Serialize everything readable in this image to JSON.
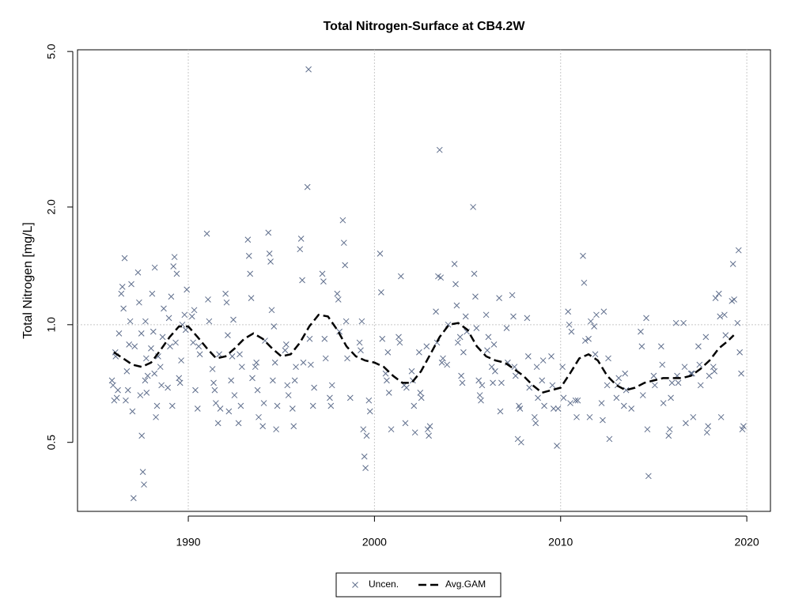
{
  "chart_data": {
    "type": "scatter",
    "title": "Total Nitrogen-Surface at CB4.2W",
    "y_label": "Total Nitrogen [mg/L]",
    "xlim": [
      1984.05,
      2021.27
    ],
    "xticks": [
      1990,
      2000,
      2010,
      2020
    ],
    "ylim": [
      0.333,
      5.05
    ],
    "ylog": true,
    "yticks": [
      0.5,
      {
        "value": 1,
        "label": "1.0"
      },
      {
        "value": 2,
        "label": "2.0"
      },
      {
        "value": 5,
        "label": "5.0"
      }
    ],
    "grid": true,
    "hline": 1,
    "legend": "bottom",
    "series": [
      {
        "name": "Uncen.",
        "type": "scatter",
        "marker": "x",
        "color": "#5f6e8c",
        "x": [
          1985.9,
          1985.96,
          1986.02,
          1986.08,
          1986.1,
          1986.16,
          1986.22,
          1986.28,
          1986.4,
          1986.46,
          1986.52,
          1986.58,
          1986.64,
          1986.7,
          1986.76,
          1986.82,
          1986.88,
          1986.94,
          1987.0,
          1987.06,
          1987.12,
          1987.3,
          1987.36,
          1987.42,
          1987.48,
          1987.5,
          1987.56,
          1987.62,
          1987.68,
          1987.74,
          1987.7,
          1987.76,
          1987.82,
          1988.0,
          1988.06,
          1988.12,
          1988.18,
          1988.2,
          1988.26,
          1988.32,
          1988.38,
          1988.5,
          1988.56,
          1988.62,
          1988.68,
          1988.9,
          1988.96,
          1989.02,
          1989.08,
          1989.14,
          1989.2,
          1989.26,
          1989.32,
          1989.38,
          1989.5,
          1989.56,
          1989.62,
          1989.68,
          1989.8,
          1989.86,
          1989.92,
          1990.2,
          1990.26,
          1990.32,
          1990.38,
          1990.5,
          1990.56,
          1990.62,
          1991.0,
          1991.06,
          1991.12,
          1991.3,
          1991.36,
          1991.42,
          1991.48,
          1991.6,
          1991.66,
          1991.72,
          1992.0,
          1992.06,
          1992.12,
          1992.18,
          1992.3,
          1992.36,
          1992.42,
          1992.48,
          1992.7,
          1992.76,
          1992.82,
          1992.88,
          1993.2,
          1993.26,
          1993.32,
          1993.38,
          1993.44,
          1993.6,
          1993.66,
          1993.72,
          1993.78,
          1994.0,
          1994.06,
          1994.12,
          1994.3,
          1994.36,
          1994.42,
          1994.48,
          1994.54,
          1994.6,
          1994.66,
          1994.72,
          1994.78,
          1995.2,
          1995.26,
          1995.32,
          1995.38,
          1995.6,
          1995.66,
          1995.72,
          1995.78,
          1996.0,
          1996.06,
          1996.12,
          1996.18,
          1996.4,
          1996.46,
          1996.52,
          1996.58,
          1996.7,
          1996.76,
          1997.2,
          1997.26,
          1997.32,
          1997.38,
          1997.6,
          1997.66,
          1997.72,
          1998.0,
          1998.06,
          1998.12,
          1998.3,
          1998.36,
          1998.42,
          1998.48,
          1998.54,
          1998.7,
          1999.2,
          1999.26,
          1999.32,
          1999.4,
          1999.46,
          1999.52,
          1999.58,
          1999.7,
          1999.76,
          2000.3,
          2000.36,
          2000.42,
          2000.6,
          2000.66,
          2000.72,
          2000.78,
          2000.9,
          2001.3,
          2001.36,
          2001.42,
          2001.6,
          2001.66,
          2001.72,
          2002.0,
          2002.06,
          2002.12,
          2002.18,
          2002.4,
          2002.46,
          2002.52,
          2002.8,
          2002.86,
          2002.92,
          2002.98,
          2003.3,
          2003.36,
          2003.42,
          2003.5,
          2003.56,
          2003.62,
          2003.68,
          2003.9,
          2003.96,
          2004.3,
          2004.36,
          2004.42,
          2004.48,
          2004.6,
          2004.66,
          2004.72,
          2004.78,
          2004.9,
          2004.96,
          2005.3,
          2005.36,
          2005.42,
          2005.48,
          2005.6,
          2005.66,
          2005.72,
          2005.78,
          2006.0,
          2006.06,
          2006.12,
          2006.3,
          2006.36,
          2006.42,
          2006.48,
          2006.7,
          2006.76,
          2006.82,
          2007.1,
          2007.16,
          2007.4,
          2007.46,
          2007.52,
          2007.58,
          2007.7,
          2007.76,
          2007.82,
          2007.88,
          2008.2,
          2008.26,
          2008.32,
          2008.6,
          2008.66,
          2008.72,
          2008.78,
          2009.0,
          2009.06,
          2009.12,
          2009.5,
          2009.56,
          2009.62,
          2009.8,
          2009.86,
          2010.1,
          2010.16,
          2010.4,
          2010.46,
          2010.52,
          2010.58,
          2010.8,
          2010.86,
          2010.92,
          2011.2,
          2011.26,
          2011.32,
          2011.5,
          2011.56,
          2011.62,
          2011.8,
          2011.86,
          2011.92,
          2012.2,
          2012.26,
          2012.32,
          2012.5,
          2012.56,
          2012.62,
          2013.0,
          2013.06,
          2013.12,
          2013.4,
          2013.46,
          2013.52,
          2013.8,
          2014.3,
          2014.36,
          2014.42,
          2014.6,
          2014.66,
          2014.72,
          2015.0,
          2015.06,
          2015.4,
          2015.46,
          2015.52,
          2015.8,
          2015.86,
          2015.92,
          2015.98,
          2016.2,
          2016.26,
          2016.32,
          2016.6,
          2016.66,
          2016.72,
          2017.0,
          2017.06,
          2017.12,
          2017.4,
          2017.46,
          2017.52,
          2017.8,
          2017.86,
          2017.92,
          2017.98,
          2018.2,
          2018.26,
          2018.32,
          2018.5,
          2018.56,
          2018.62,
          2018.8,
          2018.86,
          2019.2,
          2019.26,
          2019.32,
          2019.5,
          2019.56,
          2019.62,
          2019.7,
          2019.76,
          2019.82
        ],
        "values": [
          0.72,
          0.7,
          0.64,
          0.85,
          0.83,
          0.65,
          0.68,
          0.95,
          1.2,
          1.25,
          1.1,
          1.48,
          0.64,
          0.76,
          0.68,
          0.89,
          1.02,
          1.27,
          0.6,
          0.36,
          0.88,
          1.36,
          1.14,
          0.66,
          0.95,
          0.52,
          0.42,
          0.39,
          0.72,
          0.82,
          1.02,
          0.67,
          0.74,
          0.87,
          1.2,
          0.96,
          0.75,
          1.4,
          0.58,
          0.62,
          0.83,
          0.78,
          0.7,
          0.93,
          1.1,
          0.69,
          1.04,
          0.88,
          1.18,
          0.62,
          1.41,
          1.49,
          0.9,
          1.35,
          0.73,
          0.71,
          0.81,
          1.0,
          1.06,
          0.97,
          1.23,
          1.05,
          0.9,
          1.09,
          0.68,
          0.61,
          0.88,
          0.84,
          1.71,
          1.16,
          1.02,
          0.77,
          0.71,
          0.68,
          0.63,
          0.56,
          0.84,
          0.61,
          1.2,
          1.14,
          0.94,
          0.6,
          0.72,
          0.83,
          1.03,
          0.66,
          0.56,
          0.84,
          0.62,
          0.78,
          1.65,
          1.5,
          1.35,
          1.17,
          0.73,
          0.78,
          0.8,
          0.68,
          0.58,
          0.55,
          0.63,
          0.91,
          1.72,
          1.52,
          1.45,
          1.09,
          0.72,
          0.99,
          0.8,
          0.54,
          0.62,
          0.86,
          0.89,
          0.7,
          0.66,
          0.61,
          0.55,
          0.72,
          0.78,
          1.56,
          1.66,
          1.3,
          0.8,
          2.25,
          4.5,
          0.92,
          0.79,
          0.62,
          0.69,
          1.35,
          1.29,
          0.92,
          0.82,
          0.65,
          0.62,
          0.7,
          1.2,
          1.16,
          0.96,
          1.85,
          1.62,
          1.42,
          1.02,
          0.82,
          0.65,
          0.9,
          0.86,
          1.02,
          0.54,
          0.46,
          0.43,
          0.52,
          0.64,
          0.6,
          1.52,
          1.21,
          0.92,
          0.75,
          0.72,
          0.85,
          0.67,
          0.54,
          0.93,
          0.9,
          1.33,
          0.7,
          0.56,
          0.69,
          0.76,
          0.72,
          0.62,
          0.53,
          0.85,
          0.67,
          0.65,
          0.88,
          0.54,
          0.52,
          0.55,
          1.08,
          0.9,
          1.33,
          2.8,
          1.32,
          0.8,
          0.82,
          0.79,
          1.0,
          1.43,
          1.27,
          1.12,
          0.9,
          0.93,
          0.74,
          0.71,
          0.85,
          1.05,
          0.96,
          2.0,
          1.35,
          1.18,
          0.98,
          0.72,
          0.66,
          0.64,
          0.7,
          1.06,
          0.86,
          0.93,
          0.78,
          0.71,
          0.89,
          0.76,
          1.17,
          0.6,
          0.71,
          0.98,
          0.8,
          1.19,
          1.05,
          0.78,
          0.74,
          0.51,
          0.62,
          0.61,
          0.5,
          1.04,
          0.83,
          0.69,
          0.58,
          0.56,
          0.78,
          0.65,
          0.72,
          0.81,
          0.62,
          0.83,
          0.7,
          0.61,
          0.49,
          0.61,
          0.78,
          0.65,
          1.08,
          1.0,
          0.63,
          0.96,
          0.64,
          0.58,
          0.64,
          1.5,
          1.28,
          0.91,
          0.92,
          0.58,
          1.02,
          0.99,
          0.84,
          1.06,
          0.63,
          0.57,
          1.08,
          0.7,
          0.82,
          0.51,
          0.65,
          0.7,
          0.73,
          0.62,
          0.75,
          0.68,
          0.61,
          0.96,
          0.88,
          0.66,
          1.04,
          0.54,
          0.41,
          0.74,
          0.7,
          0.88,
          0.79,
          0.63,
          0.52,
          0.54,
          0.65,
          0.71,
          1.01,
          0.74,
          0.71,
          1.01,
          0.78,
          0.56,
          0.75,
          0.75,
          0.58,
          0.88,
          0.79,
          0.7,
          0.93,
          0.53,
          0.55,
          0.74,
          0.78,
          0.76,
          1.17,
          1.2,
          1.05,
          0.58,
          1.06,
          0.94,
          1.15,
          1.43,
          1.16,
          1.01,
          1.55,
          0.85,
          0.75,
          0.54,
          0.55
        ]
      },
      {
        "name": "Avg.GAM",
        "type": "line",
        "linestyle": "dashed",
        "color": "#000000",
        "x": [
          1986.0,
          1986.5,
          1987.0,
          1987.5,
          1988.0,
          1988.5,
          1989.0,
          1989.5,
          1990.0,
          1990.5,
          1991.0,
          1991.5,
          1992.0,
          1992.5,
          1993.0,
          1993.5,
          1994.0,
          1994.5,
          1995.0,
          1995.5,
          1996.0,
          1996.5,
          1997.0,
          1997.5,
          1998.0,
          1998.5,
          1999.0,
          1999.5,
          2000.0,
          2000.5,
          2001.0,
          2001.5,
          2002.0,
          2002.5,
          2003.0,
          2003.5,
          2004.0,
          2004.5,
          2005.0,
          2005.5,
          2006.0,
          2006.5,
          2007.0,
          2007.5,
          2008.0,
          2008.5,
          2009.0,
          2009.5,
          2010.0,
          2010.5,
          2011.0,
          2011.5,
          2012.0,
          2012.5,
          2013.0,
          2013.5,
          2014.0,
          2014.5,
          2015.0,
          2015.5,
          2016.0,
          2016.5,
          2017.0,
          2017.5,
          2018.0,
          2018.5,
          2019.0,
          2019.3
        ],
        "values": [
          0.85,
          0.82,
          0.79,
          0.78,
          0.8,
          0.86,
          0.93,
          0.99,
          0.99,
          0.93,
          0.87,
          0.82,
          0.83,
          0.87,
          0.92,
          0.95,
          0.92,
          0.87,
          0.83,
          0.84,
          0.9,
          0.99,
          1.06,
          1.05,
          0.97,
          0.88,
          0.83,
          0.81,
          0.8,
          0.78,
          0.74,
          0.71,
          0.71,
          0.76,
          0.84,
          0.93,
          1.0,
          1.01,
          0.97,
          0.88,
          0.83,
          0.81,
          0.8,
          0.77,
          0.74,
          0.7,
          0.67,
          0.68,
          0.69,
          0.75,
          0.82,
          0.84,
          0.81,
          0.74,
          0.7,
          0.68,
          0.69,
          0.71,
          0.72,
          0.73,
          0.73,
          0.73,
          0.74,
          0.77,
          0.81,
          0.87,
          0.91,
          0.94
        ]
      }
    ]
  }
}
